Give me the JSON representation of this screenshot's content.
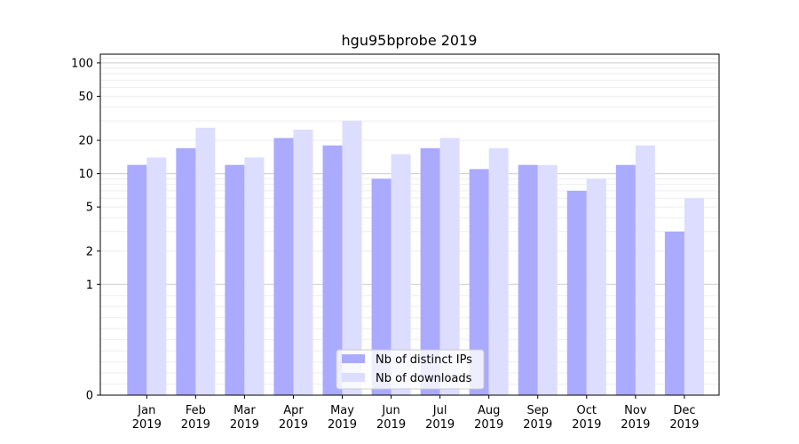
{
  "chart_data": {
    "type": "bar",
    "title": "hgu95bprobe 2019",
    "xlabel": "",
    "ylabel": "",
    "yscale": "symlog",
    "ylim": [
      0,
      120
    ],
    "yticks": [
      0,
      1,
      2,
      5,
      10,
      20,
      50,
      100
    ],
    "categories": [
      [
        "Jan",
        "2019"
      ],
      [
        "Feb",
        "2019"
      ],
      [
        "Mar",
        "2019"
      ],
      [
        "Apr",
        "2019"
      ],
      [
        "May",
        "2019"
      ],
      [
        "Jun",
        "2019"
      ],
      [
        "Jul",
        "2019"
      ],
      [
        "Aug",
        "2019"
      ],
      [
        "Sep",
        "2019"
      ],
      [
        "Oct",
        "2019"
      ],
      [
        "Nov",
        "2019"
      ],
      [
        "Dec",
        "2019"
      ]
    ],
    "series": [
      {
        "name": "Nb of distinct IPs",
        "color": "#aaaaff",
        "values": [
          12,
          17,
          12,
          21,
          18,
          9,
          17,
          11,
          12,
          7,
          12,
          3
        ]
      },
      {
        "name": "Nb of downloads",
        "color": "#ddddff",
        "values": [
          14,
          26,
          14,
          25,
          30,
          15,
          21,
          17,
          12,
          9,
          18,
          6
        ]
      }
    ],
    "grid": true,
    "legend_position": "bottom-center"
  }
}
